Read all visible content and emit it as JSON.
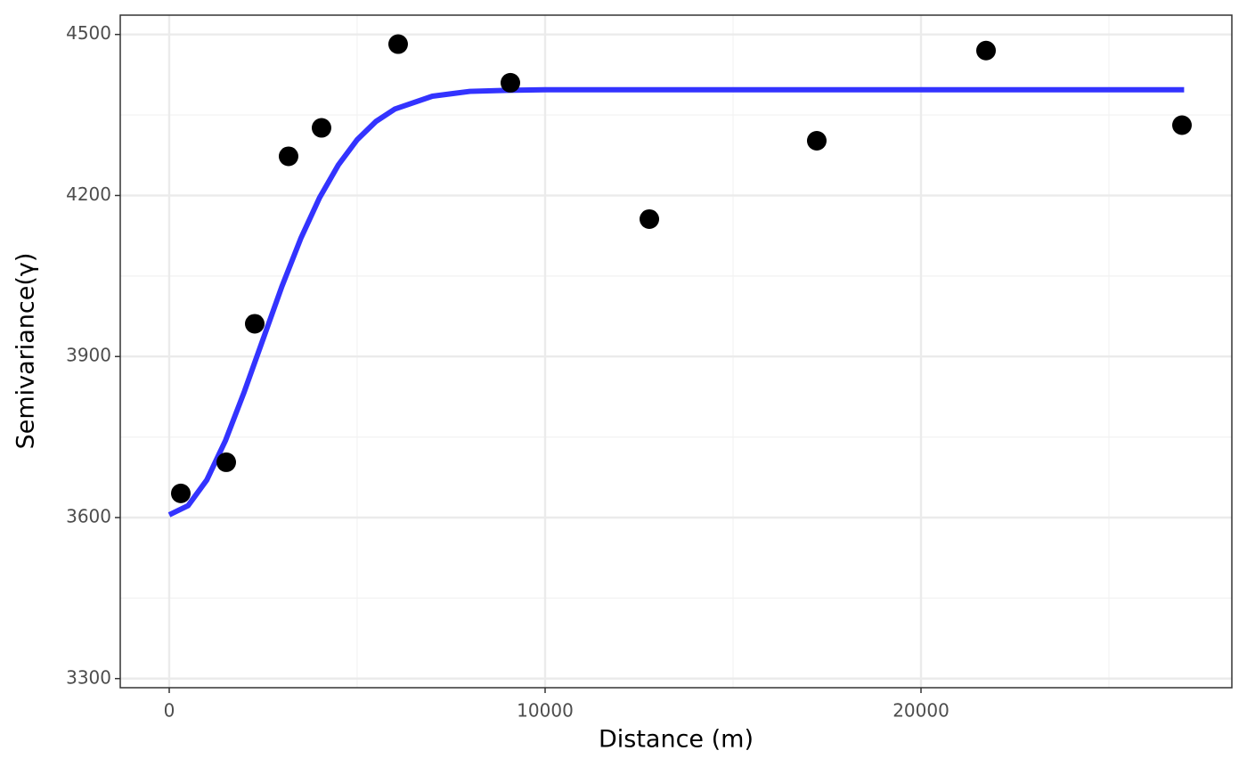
{
  "chart_data": {
    "type": "scatter",
    "x_label": "Distance (m)",
    "y_label": "Semivariance(γ)",
    "xlim": [
      -1303,
      28270
    ],
    "ylim": [
      3283,
      4536
    ],
    "xticks": [
      0,
      10000,
      20000
    ],
    "yticks": [
      3300,
      3600,
      3900,
      4200,
      4500
    ],
    "xminor": [
      5000,
      15000,
      25000
    ],
    "yminor": [
      3450,
      3750,
      4050,
      4350
    ],
    "grid": true,
    "series": [
      {
        "type": "scatter",
        "color": "#000000",
        "x": [
          308,
          1517,
          2275,
          3175,
          4052,
          6090,
          9076,
          12773,
          17227,
          21730,
          26943
        ],
        "values": [
          3645,
          3703,
          3961,
          4273,
          4326,
          4482,
          4410,
          4156,
          4302,
          4470,
          4331
        ]
      },
      {
        "type": "line",
        "color": "#3333ff",
        "x": [
          0,
          500,
          1000,
          1500,
          2000,
          2500,
          3000,
          3500,
          4000,
          4500,
          5000,
          5500,
          6000,
          7000,
          8000,
          9000,
          10000,
          27000
        ],
        "values": [
          3605,
          3622,
          3670,
          3744,
          3835,
          3933,
          4031,
          4120,
          4196,
          4257,
          4304,
          4338,
          4361,
          4385,
          4394,
          4396,
          4397,
          4397
        ]
      }
    ]
  }
}
